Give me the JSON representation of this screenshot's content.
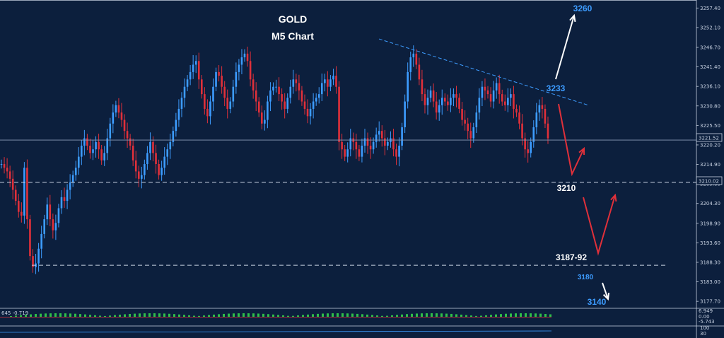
{
  "chart_data": {
    "type": "candlestick",
    "title": "GOLD",
    "subtitle": "M5 Chart",
    "ylim": [
      3176,
      3259
    ],
    "y_ticks": [
      "3257.40",
      "3252.10",
      "3246.70",
      "3241.40",
      "3236.10",
      "3230.80",
      "3225.50",
      "3220.20",
      "3214.90",
      "3209.60",
      "3204.30",
      "3198.90",
      "3193.60",
      "3188.30",
      "3183.00",
      "3177.70"
    ],
    "y_tick_values": [
      3257.4,
      3252.1,
      3246.7,
      3241.4,
      3236.1,
      3230.8,
      3225.5,
      3220.2,
      3214.9,
      3209.6,
      3204.3,
      3198.9,
      3193.6,
      3188.3,
      3183.0,
      3177.7
    ],
    "current_price_label": "3221.52",
    "current_price": 3221.52,
    "line_3210_label": "3210.02",
    "line_3210": 3210.02,
    "support_3187_level": 3187.5,
    "trendline": {
      "from": [
        0,
        3249
      ],
      "to": [
        1,
        3231
      ]
    },
    "price_path": [
      3215,
      3214,
      3213,
      3211,
      3208,
      3205,
      3202,
      3201,
      3214,
      3200,
      3190,
      3187,
      3188,
      3192,
      3196,
      3200,
      3204,
      3200,
      3197,
      3199,
      3203,
      3206,
      3205,
      3208,
      3210,
      3212,
      3214,
      3217,
      3220,
      3222,
      3220,
      3218,
      3219,
      3221,
      3219,
      3216,
      3218,
      3222,
      3226,
      3229,
      3231,
      3229,
      3227,
      3224,
      3222,
      3220,
      3216,
      3213,
      3211,
      3212,
      3215,
      3218,
      3221,
      3218,
      3215,
      3212,
      3214,
      3217,
      3219,
      3221,
      3224,
      3227,
      3230,
      3233,
      3236,
      3238,
      3240,
      3242,
      3243,
      3238,
      3234,
      3230,
      3228,
      3232,
      3236,
      3240,
      3239,
      3236,
      3233,
      3230,
      3232,
      3236,
      3240,
      3242,
      3244,
      3245,
      3243,
      3238,
      3235,
      3232,
      3229,
      3226,
      3227,
      3232,
      3235,
      3236,
      3236,
      3234,
      3232,
      3230,
      3233,
      3236,
      3238,
      3237,
      3235,
      3232,
      3230,
      3228,
      3230,
      3232,
      3233,
      3234,
      3237,
      3238,
      3236,
      3238,
      3239,
      3236,
      3221,
      3219,
      3217,
      3219,
      3222,
      3221,
      3219,
      3217,
      3220,
      3222,
      3220,
      3219,
      3221,
      3223,
      3224,
      3222,
      3220,
      3221,
      3222,
      3219,
      3217,
      3220,
      3225,
      3232,
      3240,
      3244,
      3245,
      3242,
      3238,
      3234,
      3231,
      3233,
      3235,
      3232,
      3229,
      3231,
      3233,
      3232,
      3231,
      3233,
      3234,
      3233,
      3230,
      3227,
      3226,
      3224,
      3222,
      3225,
      3229,
      3233,
      3236,
      3235,
      3234,
      3232,
      3235,
      3237,
      3234,
      3232,
      3231,
      3233,
      3234,
      3230,
      3229,
      3226,
      3222,
      3219,
      3218,
      3221,
      3225,
      3229,
      3231,
      3230,
      3226,
      3222
    ],
    "macd": {
      "label": "645 -0.719",
      "right_labels": [
        "6.949",
        "0.00",
        "-5.743"
      ]
    },
    "rsi": {
      "right_labels": [
        "100",
        "30"
      ]
    }
  },
  "annotations": {
    "target_3260": "3260",
    "level_3233": "3233",
    "level_3210": "3210",
    "level_3187_92": "3187-92",
    "level_3180": "3180",
    "target_3140": "3140"
  },
  "colors": {
    "background": "#0c1f3d",
    "bull_candle": "#3d9cff",
    "bear_candle": "#e0303a",
    "trendline": "#3d9cff",
    "arrow_red": "#e0303a",
    "arrow_white": "#ffffff",
    "macd_bar": "#2fbf4a"
  }
}
